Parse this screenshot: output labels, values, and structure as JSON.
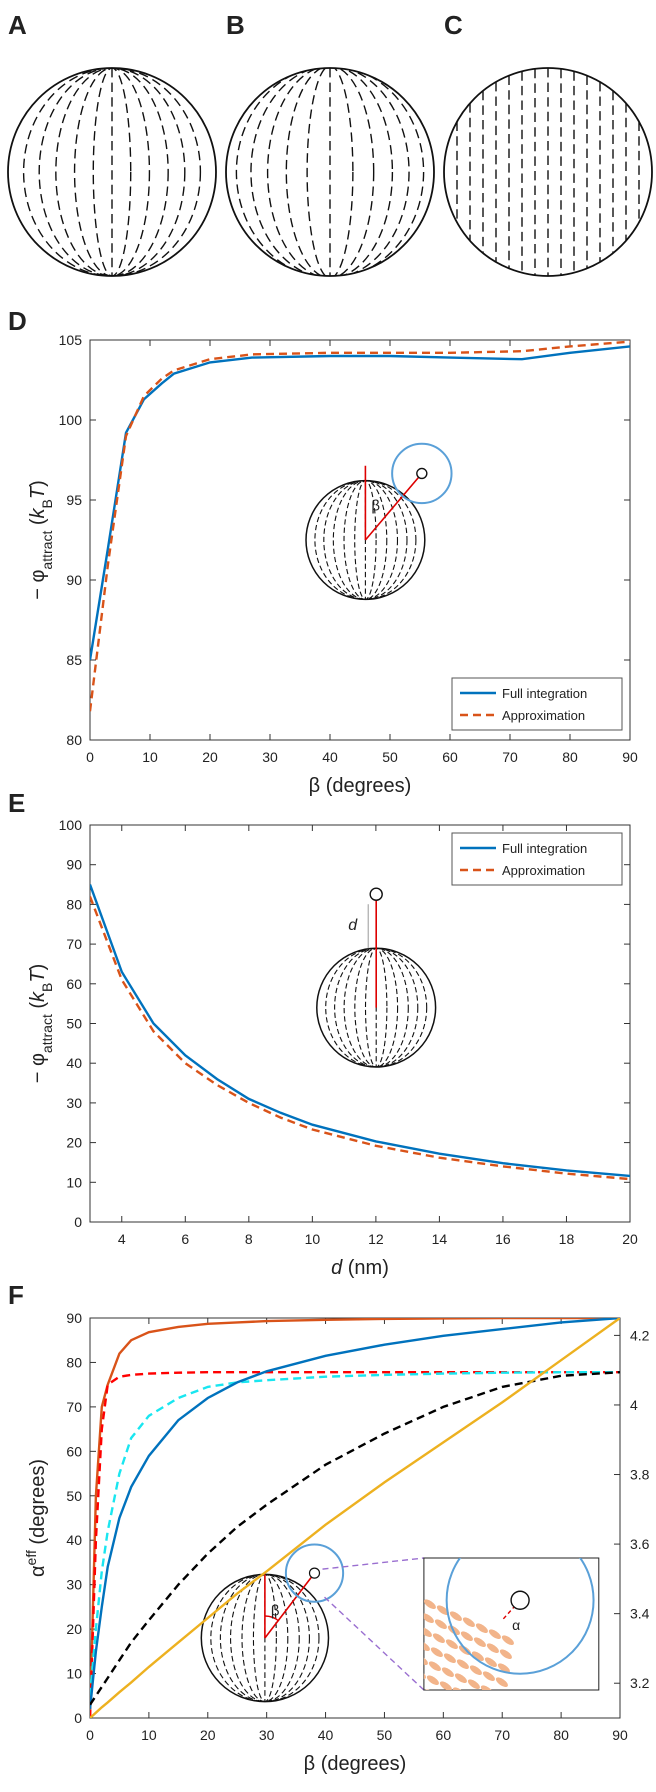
{
  "panel_labels": [
    "A",
    "B",
    "C",
    "D",
    "E",
    "F"
  ],
  "chart_data": [
    {
      "type": "line",
      "xlabel": "β (degrees)",
      "ylabel": [
        "− φ",
        "attract",
        " (",
        "k",
        "B",
        "T",
        ")"
      ],
      "xlim": [
        0,
        90
      ],
      "ylim": [
        80,
        105
      ],
      "xticks": [
        0,
        10,
        20,
        30,
        40,
        50,
        60,
        70,
        80,
        90
      ],
      "yticks": [
        80,
        85,
        90,
        95,
        100,
        105
      ],
      "x": [
        0,
        3,
        6,
        9,
        12,
        14,
        20,
        27,
        40,
        50,
        60,
        72,
        80,
        90
      ],
      "series": [
        {
          "name": "Full integration",
          "color": "#0072bd",
          "dash": false,
          "values": [
            85,
            92,
            99.2,
            101.3,
            102.3,
            102.9,
            103.6,
            103.9,
            104,
            104,
            103.9,
            103.8,
            104.2,
            104.6
          ]
        },
        {
          "name": "Approximation",
          "color": "#d95319",
          "dash": true,
          "values": [
            81.8,
            91,
            99,
            101.5,
            102.6,
            103.1,
            103.8,
            104.1,
            104.2,
            104.2,
            104.2,
            104.3,
            104.6,
            104.9
          ]
        }
      ],
      "legend": "lower right",
      "annotations": [
        "β"
      ]
    },
    {
      "type": "line",
      "xlabel": [
        "d",
        " (nm)"
      ],
      "ylabel": [
        "− φ",
        "attract",
        " (",
        "k",
        "B",
        "T",
        ")"
      ],
      "xlim": [
        3,
        20
      ],
      "ylim": [
        0,
        100
      ],
      "xticks": [
        4,
        6,
        8,
        10,
        12,
        14,
        16,
        18,
        20
      ],
      "yticks": [
        0,
        10,
        20,
        30,
        40,
        50,
        60,
        70,
        80,
        90,
        100
      ],
      "x": [
        3,
        4,
        5,
        6,
        7,
        8,
        9,
        10,
        12,
        14,
        16,
        18,
        20
      ],
      "series": [
        {
          "name": "Full integration",
          "color": "#0072bd",
          "dash": false,
          "values": [
            85,
            63,
            50,
            42,
            36,
            31,
            27.5,
            24.5,
            20.3,
            17.2,
            14.8,
            13,
            11.6
          ]
        },
        {
          "name": "Approximation",
          "color": "#d95319",
          "dash": true,
          "values": [
            82,
            61,
            48,
            40,
            34.5,
            30,
            26.3,
            23.3,
            19.2,
            16.2,
            14,
            12.2,
            10.8
          ]
        }
      ],
      "legend": "upper right",
      "annotations": [
        "d"
      ]
    },
    {
      "type": "line",
      "xlabel": "β (degrees)",
      "ylabel": [
        "α",
        "eff",
        " (degrees)"
      ],
      "xlim": [
        0,
        90
      ],
      "ylim": [
        0,
        90
      ],
      "xticks": [
        0,
        10,
        20,
        30,
        40,
        50,
        60,
        70,
        80,
        90
      ],
      "yticks": [
        0,
        10,
        20,
        30,
        40,
        50,
        60,
        70,
        80,
        90
      ],
      "y2lim": [
        3.1,
        4.25
      ],
      "y2ticks": [
        3.2,
        3.4,
        3.6,
        3.8,
        4,
        4.2
      ],
      "x": [
        0,
        1,
        2,
        3,
        5,
        7,
        10,
        15,
        20,
        25,
        30,
        40,
        50,
        60,
        70,
        80,
        90
      ],
      "series": [
        {
          "color": "#d95319",
          "dash": false,
          "values": [
            0,
            50,
            70,
            75,
            82,
            85,
            86.8,
            88,
            88.7,
            89,
            89.3,
            89.6,
            89.8,
            89.9,
            90,
            90,
            90
          ]
        },
        {
          "color": "#ff0000",
          "dash": true,
          "values": [
            0,
            40,
            65,
            75,
            76.8,
            77.2,
            77.5,
            77.7,
            77.8,
            77.8,
            77.8,
            77.8,
            77.8,
            77.8,
            77.8,
            77.8,
            77.8
          ]
        },
        {
          "color": "#19e6f0",
          "dash": true,
          "values": [
            5,
            20,
            33,
            42,
            55,
            63,
            68,
            72,
            74.5,
            75.5,
            76,
            76.8,
            77.2,
            77.5,
            77.7,
            77.8,
            77.8
          ]
        },
        {
          "color": "#0072bd",
          "dash": false,
          "values": [
            2,
            15,
            25,
            34,
            45,
            52,
            59,
            67,
            72,
            75.5,
            78,
            81.5,
            84,
            86,
            87.5,
            89,
            90
          ]
        },
        {
          "color": "#000000",
          "dash": true,
          "values": [
            3,
            5,
            7,
            9,
            13,
            17,
            22,
            30,
            37,
            43,
            48,
            57,
            64,
            70,
            74.5,
            77,
            77.8
          ]
        },
        {
          "color": "#edb120",
          "dash": false,
          "values": [
            0,
            1.2,
            2.4,
            3.5,
            5.8,
            8,
            11.5,
            17,
            22.5,
            28,
            33,
            43.5,
            53,
            62,
            71,
            80.5,
            90
          ]
        }
      ],
      "annotations": [
        "β",
        "α"
      ]
    }
  ]
}
